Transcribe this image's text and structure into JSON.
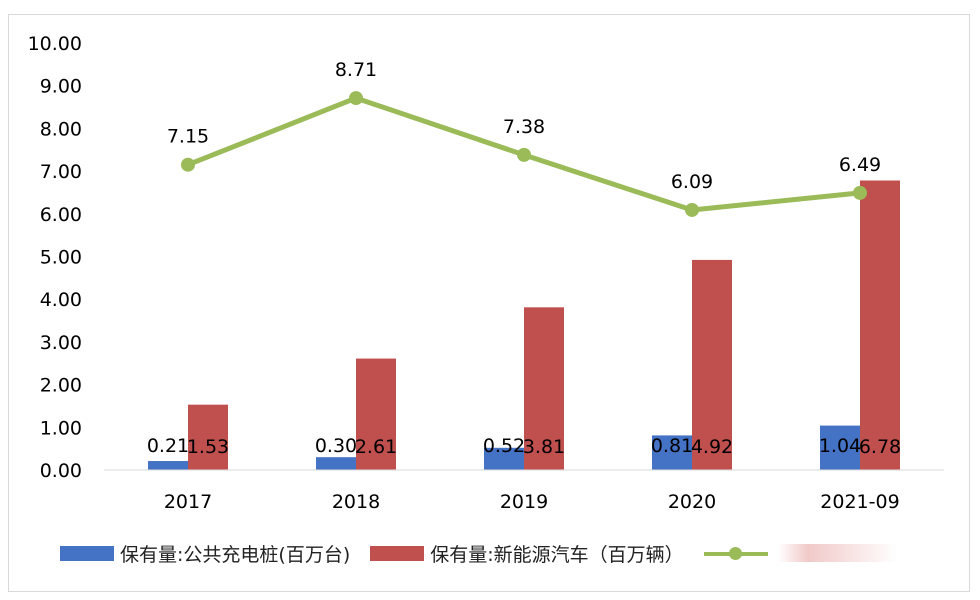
{
  "chart_data": {
    "type": "bar",
    "categories": [
      "2017",
      "2018",
      "2019",
      "2020",
      "2021-09"
    ],
    "series": [
      {
        "name": "保有量:公共充电桩(百万台)",
        "kind": "bar",
        "color": "#4472c4",
        "values": [
          0.21,
          0.3,
          0.52,
          0.81,
          1.04
        ],
        "labels": [
          "0.21",
          "0.30",
          "0.52",
          "0.81",
          "1.04"
        ]
      },
      {
        "name": "保有量:新能源汽车（百万辆）",
        "kind": "bar",
        "color": "#c0504d",
        "values": [
          1.53,
          2.61,
          3.81,
          4.92,
          6.78
        ],
        "labels": [
          "1.53",
          "2.61",
          "3.81",
          "4.92",
          "6.78"
        ]
      },
      {
        "name": "",
        "kind": "line",
        "color": "#9bbb59",
        "values": [
          7.15,
          8.71,
          7.38,
          6.09,
          6.49
        ],
        "labels": [
          "7.15",
          "8.71",
          "7.38",
          "6.09",
          "6.49"
        ]
      }
    ],
    "ylim": [
      0,
      10
    ],
    "yticks": [
      "0.00",
      "1.00",
      "2.00",
      "3.00",
      "4.00",
      "5.00",
      "6.00",
      "7.00",
      "8.00",
      "9.00",
      "10.00"
    ],
    "grid": false,
    "legend_position": "bottom",
    "title": "",
    "xlabel": "",
    "ylabel": ""
  }
}
